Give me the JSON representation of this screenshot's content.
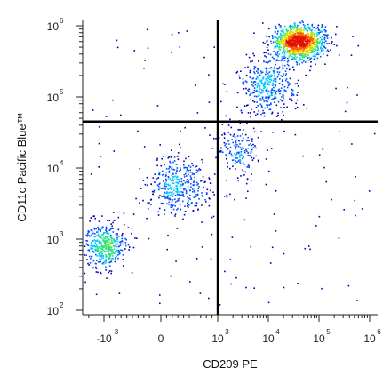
{
  "chart_data": {
    "type": "scatter",
    "title": "",
    "xlabel": "CD209 PE",
    "ylabel": "CD11c Pacific Blue™",
    "x_scale": "biexponential",
    "y_scale": "log",
    "xlim": [
      -3000,
      1000000
    ],
    "ylim": [
      100,
      1600000
    ],
    "x_ticks": [
      {
        "value": -1000,
        "base": "-10",
        "exp": "3"
      },
      {
        "value": 0,
        "base": "0",
        "exp": ""
      },
      {
        "value": 1000,
        "base": "10",
        "exp": "3"
      },
      {
        "value": 10000,
        "base": "10",
        "exp": "4"
      },
      {
        "value": 100000,
        "base": "10",
        "exp": "5"
      },
      {
        "value": 1000000,
        "base": "10",
        "exp": "6"
      }
    ],
    "y_ticks": [
      {
        "value": 100,
        "base": "10",
        "exp": "2"
      },
      {
        "value": 1000,
        "base": "10",
        "exp": "3"
      },
      {
        "value": 10000,
        "base": "10",
        "exp": "4"
      },
      {
        "value": 100000,
        "base": "10",
        "exp": "5"
      },
      {
        "value": 1000000,
        "base": "10",
        "exp": "6"
      }
    ],
    "quadrant_gates": {
      "x": 1000,
      "y": 45000
    },
    "colormap": [
      "#0000b4",
      "#0050ff",
      "#00c8ff",
      "#30e080",
      "#b0f000",
      "#ffd000",
      "#ff6000",
      "#e01000"
    ],
    "populations": [
      {
        "x_center": -1000,
        "y_center": 800,
        "x_spread": 0.22,
        "y_spread": 0.16,
        "count": 420
      },
      {
        "x_center": 300,
        "y_center": 6000,
        "x_spread": 0.3,
        "y_spread": 0.2,
        "count": 380
      },
      {
        "x_center": 2500,
        "y_center": 18000,
        "x_spread": 0.22,
        "y_spread": 0.2,
        "count": 170
      },
      {
        "x_center": 10000,
        "y_center": 150000,
        "x_spread": 0.28,
        "y_spread": 0.22,
        "count": 380
      },
      {
        "x_center": 40000,
        "y_center": 600000,
        "x_spread": 0.25,
        "y_spread": 0.12,
        "count": 1100
      }
    ],
    "grid": false,
    "legend": "none"
  }
}
